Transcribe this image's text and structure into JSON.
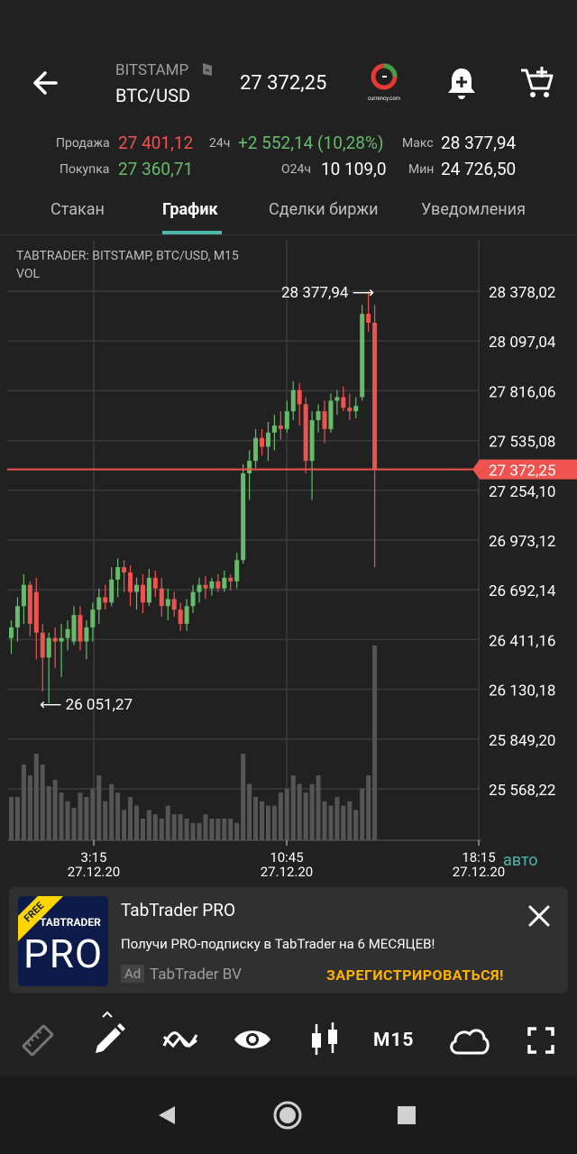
{
  "header": {
    "exchange": "BITSTAMP",
    "pair": "BTC/USD",
    "last_price": "27 372,25",
    "logo_caption": "currency.com"
  },
  "stats": {
    "sell_label": "Продажа",
    "sell_value": "27 401,12",
    "buy_label": "Покупка",
    "buy_value": "27 360,71",
    "change_label": "24ч",
    "change_value": "+2 552,14 (10,28%)",
    "volume_label": "O24ч",
    "volume_value": "10 109,0",
    "max_label": "Макс",
    "max_value": "28 377,94",
    "min_label": "Мин",
    "min_value": "24 726,50"
  },
  "tabs": [
    "Стакан",
    "График",
    "Сделки биржи",
    "Уведомления"
  ],
  "chart_data": {
    "type": "candlestick",
    "title": "TABTRADER: BITSTAMP, BTC/USD, M15",
    "subtitle": "VOL",
    "y_ticks": [
      "28 378,02",
      "28 097,04",
      "27 816,06",
      "27 535,08",
      "27 254,10",
      "26 973,12",
      "26 692,14",
      "26 411,16",
      "26 130,18",
      "25 849,20",
      "25 568,22"
    ],
    "current_price_label": "27 372,25",
    "max_annotation": "28 377,94",
    "min_annotation": "26 051,27",
    "x_ticks": [
      {
        "time": "3:15",
        "date": "27.12.20"
      },
      {
        "time": "10:45",
        "date": "27.12.20"
      },
      {
        "time": "18:15",
        "date": "27.12.20"
      }
    ],
    "auto_label": "авто",
    "candles": [
      {
        "o": 26420,
        "h": 26520,
        "l": 26330,
        "c": 26480
      },
      {
        "o": 26480,
        "h": 26650,
        "l": 26400,
        "c": 26600
      },
      {
        "o": 26600,
        "h": 26780,
        "l": 26500,
        "c": 26720
      },
      {
        "o": 26720,
        "h": 26740,
        "l": 26430,
        "c": 26500
      },
      {
        "o": 26680,
        "h": 26760,
        "l": 26300,
        "c": 26450
      },
      {
        "o": 26450,
        "h": 26500,
        "l": 26120,
        "c": 26310
      },
      {
        "o": 26310,
        "h": 26450,
        "l": 26051,
        "c": 26420
      },
      {
        "o": 26420,
        "h": 26480,
        "l": 26250,
        "c": 26400
      },
      {
        "o": 26400,
        "h": 26500,
        "l": 26200,
        "c": 26420
      },
      {
        "o": 26420,
        "h": 26520,
        "l": 26350,
        "c": 26470
      },
      {
        "o": 26400,
        "h": 26600,
        "l": 26380,
        "c": 26550
      },
      {
        "o": 26550,
        "h": 26600,
        "l": 26350,
        "c": 26400
      },
      {
        "o": 26400,
        "h": 26520,
        "l": 26300,
        "c": 26480
      },
      {
        "o": 26480,
        "h": 26620,
        "l": 26400,
        "c": 26580
      },
      {
        "o": 26580,
        "h": 26700,
        "l": 26500,
        "c": 26650
      },
      {
        "o": 26650,
        "h": 26720,
        "l": 26580,
        "c": 26620
      },
      {
        "o": 26620,
        "h": 26820,
        "l": 26600,
        "c": 26750
      },
      {
        "o": 26750,
        "h": 26870,
        "l": 26650,
        "c": 26820
      },
      {
        "o": 26820,
        "h": 26860,
        "l": 26680,
        "c": 26790
      },
      {
        "o": 26790,
        "h": 26830,
        "l": 26600,
        "c": 26680
      },
      {
        "o": 26680,
        "h": 26760,
        "l": 26580,
        "c": 26720
      },
      {
        "o": 26720,
        "h": 26780,
        "l": 26560,
        "c": 26620
      },
      {
        "o": 26620,
        "h": 26810,
        "l": 26600,
        "c": 26760
      },
      {
        "o": 26760,
        "h": 26800,
        "l": 26650,
        "c": 26700
      },
      {
        "o": 26700,
        "h": 26760,
        "l": 26540,
        "c": 26600
      },
      {
        "o": 26600,
        "h": 26700,
        "l": 26520,
        "c": 26640
      },
      {
        "o": 26640,
        "h": 26680,
        "l": 26540,
        "c": 26580
      },
      {
        "o": 26580,
        "h": 26620,
        "l": 26460,
        "c": 26500
      },
      {
        "o": 26500,
        "h": 26640,
        "l": 26460,
        "c": 26600
      },
      {
        "o": 26600,
        "h": 26720,
        "l": 26560,
        "c": 26680
      },
      {
        "o": 26680,
        "h": 26760,
        "l": 26620,
        "c": 26720
      },
      {
        "o": 26720,
        "h": 26770,
        "l": 26640,
        "c": 26700
      },
      {
        "o": 26700,
        "h": 26760,
        "l": 26660,
        "c": 26740
      },
      {
        "o": 26740,
        "h": 26780,
        "l": 26680,
        "c": 26700
      },
      {
        "o": 26700,
        "h": 26800,
        "l": 26680,
        "c": 26760
      },
      {
        "o": 26760,
        "h": 26780,
        "l": 26690,
        "c": 26740
      },
      {
        "o": 26740,
        "h": 26900,
        "l": 26700,
        "c": 26860
      },
      {
        "o": 26860,
        "h": 27400,
        "l": 26840,
        "c": 27350
      },
      {
        "o": 27350,
        "h": 27480,
        "l": 27200,
        "c": 27420
      },
      {
        "o": 27420,
        "h": 27600,
        "l": 27380,
        "c": 27550
      },
      {
        "o": 27550,
        "h": 27600,
        "l": 27450,
        "c": 27500
      },
      {
        "o": 27500,
        "h": 27640,
        "l": 27420,
        "c": 27580
      },
      {
        "o": 27580,
        "h": 27680,
        "l": 27480,
        "c": 27620
      },
      {
        "o": 27620,
        "h": 27700,
        "l": 27540,
        "c": 27600
      },
      {
        "o": 27600,
        "h": 27760,
        "l": 27580,
        "c": 27700
      },
      {
        "o": 27700,
        "h": 27870,
        "l": 27650,
        "c": 27820
      },
      {
        "o": 27820,
        "h": 27860,
        "l": 27620,
        "c": 27740
      },
      {
        "o": 27740,
        "h": 27780,
        "l": 27350,
        "c": 27420
      },
      {
        "o": 27420,
        "h": 27700,
        "l": 27200,
        "c": 27650
      },
      {
        "o": 27650,
        "h": 27740,
        "l": 27580,
        "c": 27700
      },
      {
        "o": 27700,
        "h": 27760,
        "l": 27520,
        "c": 27600
      },
      {
        "o": 27600,
        "h": 27800,
        "l": 27580,
        "c": 27760
      },
      {
        "o": 27760,
        "h": 27820,
        "l": 27680,
        "c": 27780
      },
      {
        "o": 27780,
        "h": 27840,
        "l": 27700,
        "c": 27720
      },
      {
        "o": 27720,
        "h": 27800,
        "l": 27650,
        "c": 27700
      },
      {
        "o": 27700,
        "h": 27780,
        "l": 27660,
        "c": 27730
      },
      {
        "o": 27780,
        "h": 28300,
        "l": 27760,
        "c": 28250
      },
      {
        "o": 28250,
        "h": 28377.94,
        "l": 28150,
        "c": 28200
      },
      {
        "o": 28200,
        "h": 28300,
        "l": 26820,
        "c": 27372
      }
    ],
    "volumes": [
      20,
      20,
      35,
      30,
      40,
      35,
      25,
      28,
      22,
      18,
      15,
      22,
      20,
      24,
      30,
      18,
      26,
      22,
      14,
      20,
      16,
      10,
      14,
      12,
      10,
      16,
      12,
      12,
      10,
      8,
      8,
      12,
      10,
      10,
      10,
      10,
      8,
      40,
      26,
      20,
      18,
      16,
      16,
      22,
      24,
      30,
      26,
      22,
      26,
      30,
      18,
      16,
      20,
      16,
      18,
      14,
      24,
      30,
      90
    ],
    "volume_max": 100
  },
  "ad": {
    "badge": "FREE",
    "logo_top": "TABTRADER",
    "logo_main": "PRO",
    "title": "TabTrader PRO",
    "text": "Получи PRO-подписку в TabTrader на 6 МЕСЯЦЕВ!",
    "ad_tag": "Ad",
    "advertiser": "TabTrader BV",
    "cta": "ЗАРЕГИСТРИРОВАТЬСЯ!"
  },
  "toolbar": {
    "timeframe": "M15"
  },
  "colors": {
    "up": "#66bb6a",
    "down": "#ef5350",
    "accent": "#4db6ac",
    "cta": "#ffb300"
  }
}
